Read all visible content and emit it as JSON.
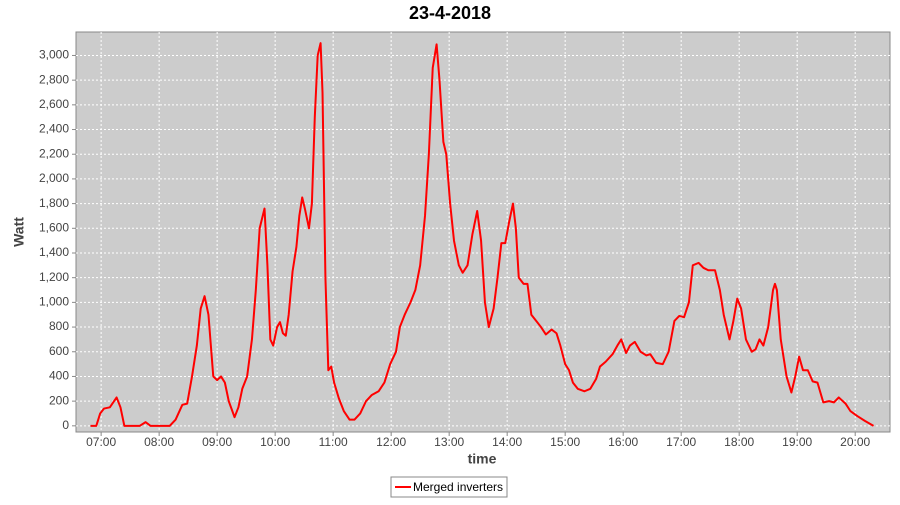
{
  "chart_data": {
    "type": "line",
    "title": "23-4-2018",
    "xlabel": "time",
    "ylabel": "Watt",
    "xlim": [
      394,
      1236
    ],
    "ylim": [
      -50,
      3190
    ],
    "xticks": [
      {
        "value": 420,
        "label": "07:00"
      },
      {
        "value": 480,
        "label": "08:00"
      },
      {
        "value": 540,
        "label": "09:00"
      },
      {
        "value": 600,
        "label": "10:00"
      },
      {
        "value": 660,
        "label": "11:00"
      },
      {
        "value": 720,
        "label": "12:00"
      },
      {
        "value": 780,
        "label": "13:00"
      },
      {
        "value": 840,
        "label": "14:00"
      },
      {
        "value": 900,
        "label": "15:00"
      },
      {
        "value": 960,
        "label": "16:00"
      },
      {
        "value": 1020,
        "label": "17:00"
      },
      {
        "value": 1080,
        "label": "18:00"
      },
      {
        "value": 1140,
        "label": "19:00"
      },
      {
        "value": 1200,
        "label": "20:00"
      }
    ],
    "yticks": [
      0,
      200,
      400,
      600,
      800,
      {
        "value": 1000,
        "label": "1,000"
      },
      {
        "value": 1200,
        "label": "1,200"
      },
      {
        "value": 1400,
        "label": "1,400"
      },
      {
        "value": 1600,
        "label": "1,600"
      },
      {
        "value": 1800,
        "label": "1,800"
      },
      {
        "value": 2000,
        "label": "2,000"
      },
      {
        "value": 2200,
        "label": "2,200"
      },
      {
        "value": 2400,
        "label": "2,400"
      },
      {
        "value": 2600,
        "label": "2,600"
      },
      {
        "value": 2800,
        "label": "2,800"
      },
      {
        "value": 3000,
        "label": "3,000"
      }
    ],
    "grid": true,
    "legend": "bottom",
    "x": [
      409,
      415,
      419,
      423,
      429,
      436,
      440,
      444,
      448,
      460,
      466,
      471,
      491,
      497,
      504,
      509,
      514,
      519,
      523,
      527,
      531,
      536,
      540,
      544,
      548,
      552,
      558,
      562,
      566,
      571,
      576,
      580,
      584,
      589,
      592,
      595,
      598,
      602,
      605,
      608,
      611,
      614,
      618,
      622,
      625,
      628,
      631,
      635,
      638,
      641,
      644,
      647,
      649,
      652,
      655,
      658,
      661,
      666,
      671,
      677,
      682,
      688,
      694,
      700,
      707,
      713,
      719,
      725,
      729,
      734,
      740,
      745,
      750,
      755,
      759,
      763,
      767,
      770,
      774,
      777,
      781,
      785,
      790,
      794,
      799,
      804,
      809,
      813,
      817,
      821,
      826,
      830,
      834,
      838,
      842,
      846,
      849,
      852,
      857,
      861,
      865,
      870,
      875,
      880,
      886,
      891,
      895,
      900,
      904,
      908,
      913,
      920,
      926,
      932,
      936,
      942,
      949,
      954,
      958,
      963,
      967,
      972,
      978,
      984,
      988,
      994,
      1001,
      1007,
      1013,
      1018,
      1023,
      1028,
      1032,
      1038,
      1043,
      1048,
      1055,
      1060,
      1064,
      1070,
      1074,
      1078,
      1082,
      1087,
      1093,
      1097,
      1101,
      1105,
      1110,
      1115,
      1117,
      1119,
      1123,
      1129,
      1134,
      1138,
      1142,
      1146,
      1151,
      1156,
      1161,
      1167,
      1173,
      1178,
      1183,
      1190,
      1195,
      1202,
      1210,
      1219
    ],
    "series": [
      {
        "name": "Merged inverters",
        "color": "#ff0000",
        "values": [
          0,
          0,
          100,
          140,
          150,
          230,
          150,
          0,
          0,
          0,
          30,
          0,
          0,
          50,
          170,
          180,
          400,
          650,
          950,
          1050,
          900,
          400,
          370,
          400,
          350,
          200,
          70,
          150,
          300,
          400,
          700,
          1100,
          1600,
          1760,
          1300,
          700,
          650,
          800,
          840,
          750,
          730,
          900,
          1250,
          1450,
          1700,
          1850,
          1750,
          1600,
          1800,
          2500,
          3000,
          3100,
          2700,
          1200,
          450,
          480,
          350,
          220,
          120,
          50,
          50,
          100,
          200,
          250,
          280,
          350,
          500,
          600,
          800,
          900,
          1000,
          1100,
          1300,
          1700,
          2200,
          2900,
          3090,
          2800,
          2300,
          2200,
          1800,
          1500,
          1300,
          1240,
          1300,
          1550,
          1740,
          1500,
          1000,
          800,
          950,
          1200,
          1480,
          1480,
          1650,
          1800,
          1600,
          1200,
          1150,
          1150,
          900,
          850,
          800,
          740,
          780,
          750,
          650,
          500,
          450,
          350,
          300,
          280,
          300,
          380,
          480,
          520,
          580,
          650,
          700,
          590,
          650,
          680,
          600,
          570,
          580,
          510,
          500,
          600,
          850,
          890,
          880,
          1000,
          1300,
          1320,
          1280,
          1260,
          1260,
          1100,
          900,
          700,
          850,
          1030,
          950,
          700,
          600,
          620,
          700,
          650,
          800,
          1100,
          1150,
          1100,
          700,
          400,
          270,
          400,
          560,
          450,
          450,
          360,
          350,
          190,
          200,
          190,
          230,
          180,
          120,
          80,
          40,
          0
        ]
      }
    ]
  }
}
